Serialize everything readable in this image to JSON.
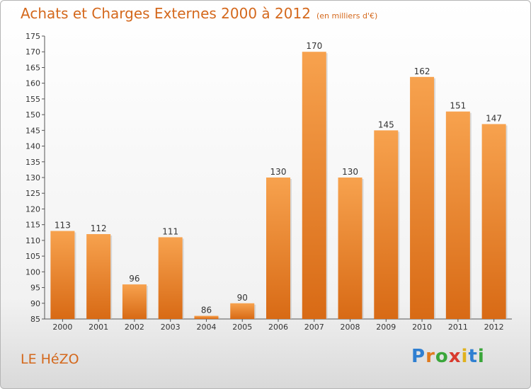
{
  "header": {
    "title": "Achats et Charges Externes 2000 à 2012",
    "unit": "(en milliers d'€)"
  },
  "footer": {
    "place": "LE HéZO",
    "logo": "Proxiti"
  },
  "colors": {
    "bar_top": "#f7a24e",
    "bar_bottom": "#d86a15",
    "accent": "#d4681c"
  },
  "chart_data": {
    "type": "bar",
    "title": "Achats et Charges Externes 2000 à 2012",
    "xlabel": "",
    "ylabel": "",
    "categories": [
      "2000",
      "2001",
      "2002",
      "2003",
      "2004",
      "2005",
      "2006",
      "2007",
      "2008",
      "2009",
      "2010",
      "2011",
      "2012"
    ],
    "values": [
      113,
      112,
      96,
      111,
      86,
      90,
      130,
      170,
      130,
      145,
      162,
      151,
      147
    ],
    "ylim": [
      85,
      175
    ],
    "yticks": [
      85,
      90,
      95,
      100,
      105,
      110,
      115,
      120,
      125,
      130,
      135,
      140,
      145,
      150,
      155,
      160,
      165,
      170,
      175
    ],
    "grid": false,
    "legend": "none"
  }
}
